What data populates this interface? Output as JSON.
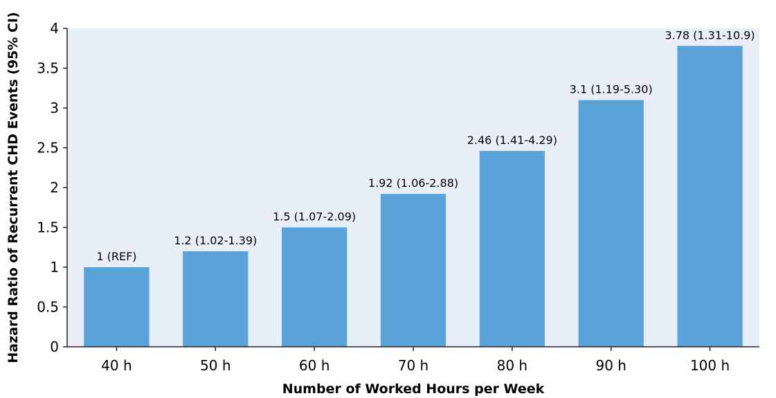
{
  "chart_data": {
    "type": "bar",
    "title": "",
    "xlabel": "Number of Worked Hours per Week",
    "ylabel": "Hazard Ratio of Recurrent CHD Events (95% CI)",
    "categories": [
      "40 h",
      "50 h",
      "60 h",
      "70 h",
      "80 h",
      "90 h",
      "100 h"
    ],
    "values": [
      1,
      1.2,
      1.5,
      1.92,
      2.46,
      3.1,
      3.78
    ],
    "data_labels": [
      "1 (REF)",
      "1.2 (1.02-1.39)",
      "1.5 (1.07-2.09)",
      "1.92 (1.06-2.88)",
      "2.46 (1.41-4.29)",
      "3.1 (1.19-5.30)",
      "3.78 (1.31-10.9)"
    ],
    "ylim": [
      0,
      4
    ],
    "yticks": [
      "0",
      "0.5",
      "1",
      "1.5",
      "2",
      "2.5",
      "3",
      "3.5",
      "4"
    ],
    "grid": false,
    "legend": "none",
    "colors": {
      "bar": "#5aa3d8",
      "plot_background": "#e9eff9",
      "axis": "#222222"
    }
  }
}
